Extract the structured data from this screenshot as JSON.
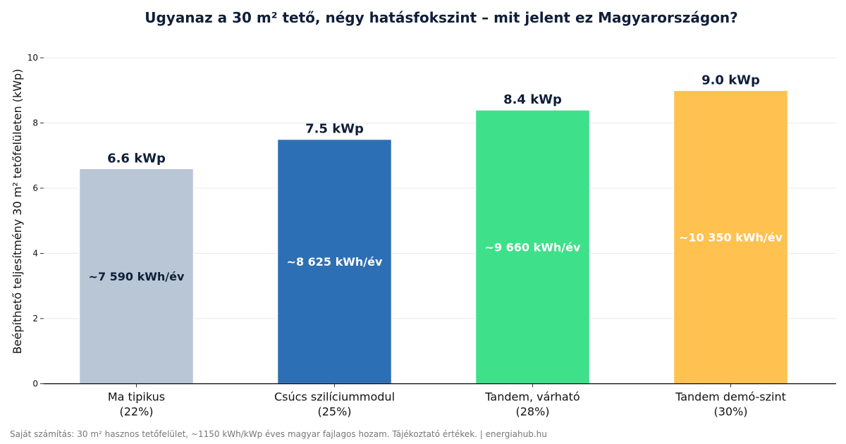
{
  "chart_data": {
    "type": "bar",
    "title": "Ugyanaz a 30 m² tető, négy hatásfokszint – mit jelent ez Magyarországon?",
    "ylabel": "Beépíthető teljesítmény 30 m² tetőfelületen (kWp)",
    "xlabel": "",
    "ylim": [
      0,
      10
    ],
    "yticks": [
      0,
      2,
      4,
      6,
      8,
      10
    ],
    "grid": true,
    "categories": [
      [
        "Ma tipikus",
        "(22%)"
      ],
      [
        "Csúcs szilíciummodul",
        "(25%)"
      ],
      [
        "Tandem, várható",
        "(28%)"
      ],
      [
        "Tandem demó-szint",
        "(30%)"
      ]
    ],
    "values": [
      6.6,
      7.5,
      8.4,
      9.0
    ],
    "value_labels": [
      "6.6 kWp",
      "7.5 kWp",
      "8.4 kWp",
      "9.0 kWp"
    ],
    "annual_yield_labels": [
      "~7 590 kWh/év",
      "~8 625 kWh/év",
      "~9 660 kWh/év",
      "~10 350 kWh/év"
    ],
    "colors": [
      "#b8c6d6",
      "#2d6fb4",
      "#3ee08a",
      "#ffc150"
    ],
    "inner_label_colors": [
      "#0f1f38",
      "#ffffff",
      "#ffffff",
      "#ffffff"
    ]
  },
  "footer": "Saját számítás: 30 m² hasznos tetőfelület, ~1150 kWh/kWp éves magyar fajlagos hozam. Tájékoztató értékek. | energiahub.hu"
}
